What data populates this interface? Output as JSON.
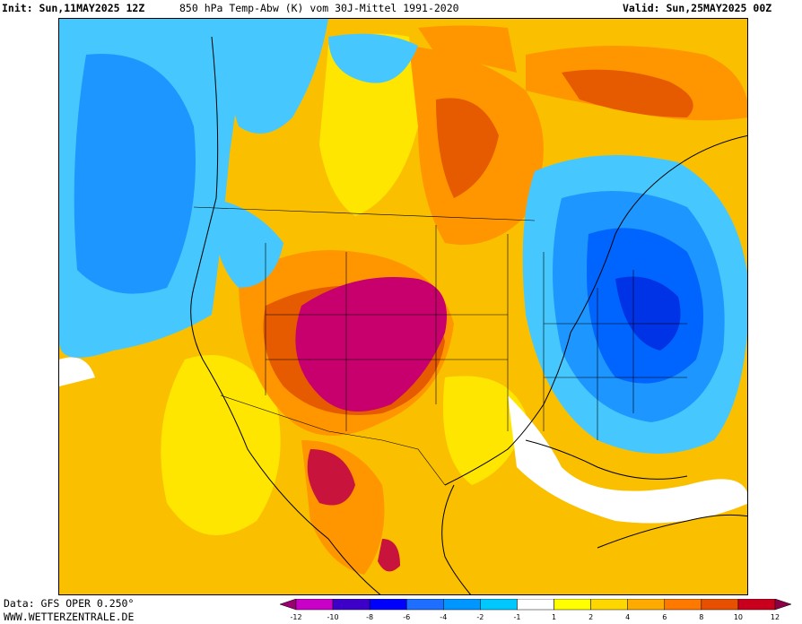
{
  "header": {
    "init_label": "Init: Sun,11MAY2025 12Z",
    "title": "850 hPa Temp-Abw (K) vom 30J-Mittel 1991-2020",
    "valid_label": "Valid: Sun,25MAY2025 00Z"
  },
  "footer": {
    "data_source": "Data: GFS OPER 0.250°",
    "website": "WWW.WETTERZENTRALE.DE"
  },
  "legend": {
    "unit": "K",
    "tick_labels": [
      "-12",
      "-10",
      "-8",
      "-6",
      "-4",
      "-2",
      "-1",
      "1",
      "2",
      "4",
      "6",
      "8",
      "10",
      "12"
    ],
    "colors": [
      "#9b0072",
      "#c800c8",
      "#3c00c8",
      "#0000ff",
      "#1e6eff",
      "#0096ff",
      "#00c8ff",
      "#ffffff",
      "#ffff00",
      "#ffd700",
      "#ffaa00",
      "#ff7800",
      "#e65000",
      "#c8001e",
      "#8c0046"
    ]
  },
  "map": {
    "region": "North America",
    "colors": {
      "background_warm": "#fac000",
      "warm_yellow": "#ffe600",
      "warm_orange": "#ff9600",
      "warm_dark_orange": "#e65a00",
      "hot_red": "#c8143c",
      "hot_magenta": "#c8006e",
      "cold_light": "#46c8ff",
      "cold_mid": "#1e96ff",
      "cold_blue": "#0064ff",
      "cold_deep": "#0032e6",
      "neutral_white": "#ffffff"
    }
  }
}
